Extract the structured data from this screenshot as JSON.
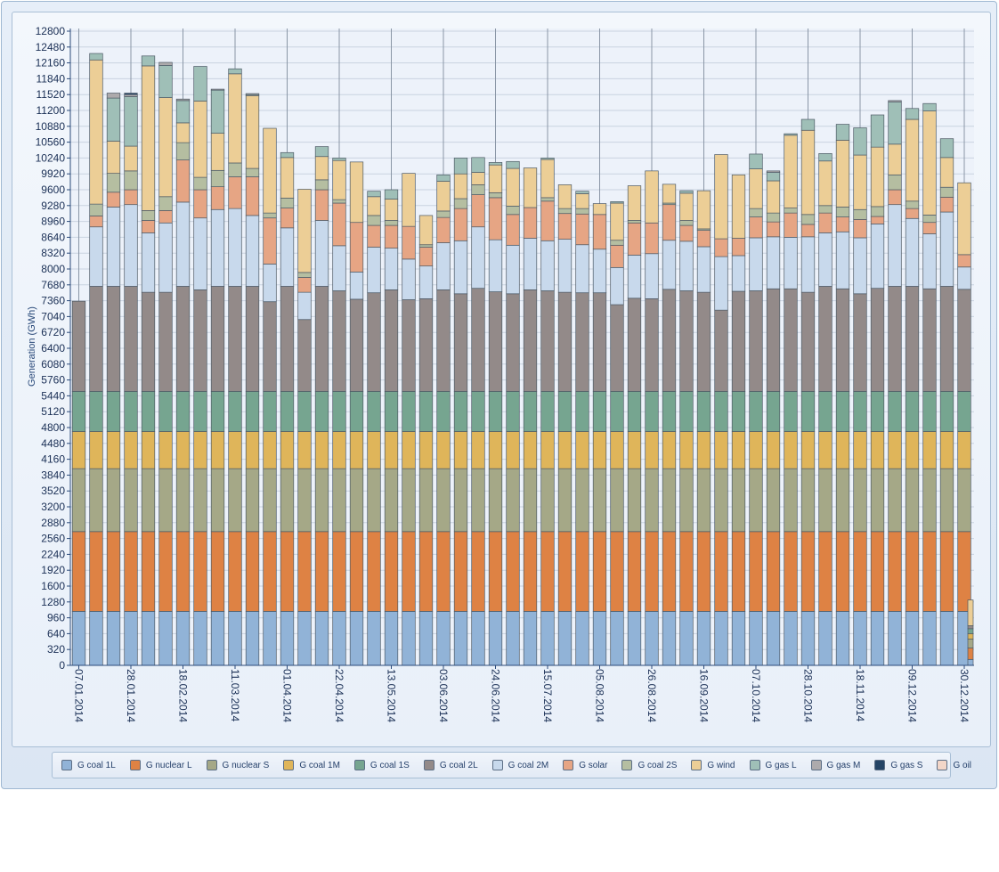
{
  "colors": {
    "coal1L": "#91b3d7",
    "nuclearL": "#de8244",
    "nuclearS": "#a5a887",
    "coal1M": "#dfb55a",
    "coal1S": "#76a590",
    "coal2L": "#938a89",
    "coal2M": "#c8d9ec",
    "solar": "#e6a584",
    "coal2S": "#b5bea1",
    "wind": "#ecce96",
    "gasL": "#9fbfb7",
    "gasM": "#adaaac",
    "gasS": "#244466",
    "oil": "#f3d6c8"
  },
  "legend": [
    {
      "label": "G coal 1L",
      "color": "#91b3d7"
    },
    {
      "label": "G nuclear L",
      "color": "#de8244"
    },
    {
      "label": "G nuclear S",
      "color": "#a5a887"
    },
    {
      "label": "G coal 1M",
      "color": "#dfb55a"
    },
    {
      "label": "G coal 1S",
      "color": "#76a590"
    },
    {
      "label": "G coal 2L",
      "color": "#938a89"
    },
    {
      "label": "G coal 2M",
      "color": "#c8d9ec"
    },
    {
      "label": "G solar",
      "color": "#e6a584"
    },
    {
      "label": "G coal 2S",
      "color": "#b5bea1"
    },
    {
      "label": "G wind",
      "color": "#ecce96"
    },
    {
      "label": "G gas L",
      "color": "#9fbfb7"
    },
    {
      "label": "G gas M",
      "color": "#adaaac"
    },
    {
      "label": "G gas S",
      "color": "#244466"
    },
    {
      "label": "G oil",
      "color": "#f3d6c8"
    }
  ],
  "chart_data": {
    "type": "bar",
    "stacked": true,
    "ylabel": "Generation (GWh)",
    "xlabel": "",
    "ylim": [
      0,
      12800
    ],
    "ytick_step": 320,
    "grid": true,
    "legend_position": "bottom",
    "x_tick_labels": [
      {
        "index": 0,
        "label": "07.01.2014"
      },
      {
        "index": 3,
        "label": "28.01.2014"
      },
      {
        "index": 6,
        "label": "18.02.2014"
      },
      {
        "index": 9,
        "label": "11.03.2014"
      },
      {
        "index": 12,
        "label": "01.04.2014"
      },
      {
        "index": 15,
        "label": "22.04.2014"
      },
      {
        "index": 18,
        "label": "13.05.2014"
      },
      {
        "index": 21,
        "label": "03.06.2014"
      },
      {
        "index": 24,
        "label": "24.06.2014"
      },
      {
        "index": 27,
        "label": "15.07.2014"
      },
      {
        "index": 30,
        "label": "05.08.2014"
      },
      {
        "index": 33,
        "label": "26.08.2014"
      },
      {
        "index": 36,
        "label": "16.09.2014"
      },
      {
        "index": 39,
        "label": "07.10.2014"
      },
      {
        "index": 42,
        "label": "28.10.2014"
      },
      {
        "index": 45,
        "label": "18.11.2014"
      },
      {
        "index": 48,
        "label": "09.12.2014"
      },
      {
        "index": 51,
        "label": "30.12.2014"
      }
    ],
    "series_order": [
      "G coal 1L",
      "G nuclear L",
      "G nuclear S",
      "G coal 1M",
      "G coal 1S",
      "G coal 2L",
      "G coal 2M",
      "G solar",
      "G coal 2S",
      "G wind",
      "G gas L",
      "G gas M",
      "G gas S"
    ],
    "stack_values": [
      [
        1090,
        1610,
        1270,
        750,
        810,
        1820,
        0,
        0,
        0,
        0,
        0,
        0,
        0
      ],
      [
        1090,
        1610,
        1270,
        750,
        810,
        2120,
        1200,
        220,
        240,
        2910,
        130,
        0,
        0
      ],
      [
        1090,
        1610,
        1270,
        750,
        810,
        2120,
        1600,
        300,
        380,
        650,
        870,
        100,
        0
      ],
      [
        1090,
        1610,
        1270,
        750,
        810,
        2120,
        1650,
        300,
        380,
        500,
        1000,
        40,
        30
      ],
      [
        1090,
        1610,
        1270,
        750,
        810,
        2000,
        1200,
        250,
        200,
        2920,
        200,
        0,
        0
      ],
      [
        1090,
        1610,
        1270,
        750,
        810,
        2000,
        1400,
        250,
        280,
        2000,
        650,
        60,
        0
      ],
      [
        1090,
        1610,
        1270,
        750,
        810,
        2120,
        1700,
        850,
        350,
        400,
        450,
        30,
        0
      ],
      [
        1090,
        1610,
        1270,
        750,
        810,
        2050,
        1450,
        570,
        250,
        1540,
        700,
        0,
        0
      ],
      [
        1090,
        1610,
        1270,
        750,
        810,
        2120,
        1550,
        460,
        330,
        750,
        870,
        20,
        0
      ],
      [
        1090,
        1610,
        1270,
        750,
        810,
        2120,
        1570,
        640,
        280,
        1800,
        100,
        0,
        0
      ],
      [
        1090,
        1610,
        1270,
        750,
        810,
        2120,
        1430,
        780,
        170,
        1470,
        20,
        20,
        0
      ],
      [
        1090,
        1610,
        1270,
        750,
        810,
        1810,
        760,
        930,
        100,
        1710,
        0,
        0,
        0
      ],
      [
        1090,
        1610,
        1270,
        750,
        810,
        2120,
        1180,
        400,
        200,
        820,
        100,
        0,
        0
      ],
      [
        1090,
        1610,
        1270,
        750,
        810,
        1450,
        550,
        300,
        100,
        1680,
        0,
        0,
        0
      ],
      [
        1090,
        1610,
        1270,
        750,
        810,
        2120,
        1330,
        620,
        200,
        470,
        200,
        0,
        0
      ],
      [
        1090,
        1610,
        1270,
        750,
        810,
        2030,
        910,
        860,
        70,
        790,
        50,
        0,
        0
      ],
      [
        1090,
        1610,
        1270,
        750,
        810,
        1860,
        550,
        1000,
        0,
        1220,
        0,
        0,
        0
      ],
      [
        1090,
        1610,
        1270,
        750,
        810,
        1990,
        920,
        440,
        200,
        380,
        110,
        0,
        0
      ],
      [
        1090,
        1610,
        1270,
        750,
        810,
        2050,
        840,
        460,
        100,
        430,
        190,
        0,
        0
      ],
      [
        1090,
        1610,
        1270,
        750,
        810,
        1850,
        820,
        660,
        0,
        1070,
        0,
        0,
        0
      ],
      [
        1090,
        1610,
        1270,
        750,
        810,
        1870,
        660,
        380,
        50,
        590,
        0,
        0,
        0
      ],
      [
        1090,
        1610,
        1270,
        750,
        810,
        2050,
        950,
        510,
        130,
        600,
        130,
        0,
        0
      ],
      [
        1090,
        1610,
        1270,
        750,
        810,
        1970,
        1070,
        650,
        200,
        500,
        320,
        0,
        0
      ],
      [
        1090,
        1610,
        1270,
        750,
        810,
        2080,
        1240,
        650,
        200,
        250,
        300,
        0,
        0
      ],
      [
        1090,
        1610,
        1270,
        750,
        810,
        2010,
        1050,
        850,
        100,
        560,
        50,
        0,
        0
      ],
      [
        1090,
        1610,
        1270,
        750,
        810,
        1970,
        980,
        620,
        170,
        760,
        140,
        0,
        0
      ],
      [
        1090,
        1610,
        1270,
        750,
        810,
        2050,
        1040,
        620,
        0,
        800,
        0,
        0,
        0
      ],
      [
        1090,
        1610,
        1270,
        750,
        810,
        2030,
        1010,
        800,
        70,
        770,
        30,
        0,
        0
      ],
      [
        1090,
        1610,
        1270,
        750,
        810,
        2000,
        1070,
        520,
        100,
        480,
        0,
        0,
        0
      ],
      [
        1090,
        1610,
        1270,
        750,
        810,
        1990,
        970,
        620,
        110,
        300,
        50,
        0,
        0
      ],
      [
        1090,
        1610,
        1270,
        750,
        810,
        1990,
        880,
        700,
        0,
        220,
        0,
        0,
        0
      ],
      [
        1090,
        1610,
        1270,
        750,
        810,
        1750,
        750,
        450,
        100,
        750,
        30,
        0,
        0
      ],
      [
        1090,
        1610,
        1270,
        750,
        810,
        1880,
        870,
        650,
        50,
        700,
        0,
        0,
        0
      ],
      [
        1090,
        1610,
        1270,
        750,
        810,
        1870,
        910,
        620,
        0,
        1050,
        0,
        0,
        0
      ],
      [
        1090,
        1610,
        1270,
        750,
        810,
        2060,
        990,
        720,
        30,
        380,
        0,
        0,
        0
      ],
      [
        1090,
        1610,
        1270,
        750,
        810,
        2030,
        1000,
        320,
        100,
        550,
        50,
        0,
        0
      ],
      [
        1090,
        1610,
        1270,
        750,
        810,
        2000,
        920,
        330,
        30,
        770,
        0,
        0,
        0
      ],
      [
        1090,
        1610,
        1270,
        750,
        810,
        1640,
        1080,
        360,
        0,
        1700,
        0,
        0,
        0
      ],
      [
        1090,
        1610,
        1270,
        750,
        810,
        2020,
        720,
        350,
        0,
        1280,
        0,
        0,
        0
      ],
      [
        1090,
        1610,
        1270,
        750,
        810,
        2030,
        1070,
        420,
        170,
        800,
        300,
        0,
        0
      ],
      [
        1090,
        1610,
        1270,
        750,
        810,
        2070,
        1050,
        300,
        180,
        650,
        170,
        30,
        0
      ],
      [
        1090,
        1610,
        1270,
        750,
        810,
        2070,
        1040,
        490,
        100,
        1470,
        30,
        0,
        0
      ],
      [
        1090,
        1610,
        1270,
        750,
        810,
        2000,
        1120,
        250,
        200,
        1700,
        220,
        0,
        0
      ],
      [
        1090,
        1610,
        1270,
        750,
        810,
        2120,
        1080,
        400,
        150,
        900,
        150,
        0,
        0
      ],
      [
        1090,
        1610,
        1270,
        750,
        810,
        2070,
        1150,
        300,
        200,
        1350,
        320,
        0,
        0
      ],
      [
        1090,
        1610,
        1270,
        750,
        810,
        1970,
        1130,
        370,
        200,
        1100,
        550,
        0,
        0
      ],
      [
        1090,
        1610,
        1270,
        750,
        810,
        2080,
        1300,
        150,
        200,
        1200,
        650,
        0,
        0
      ],
      [
        1090,
        1610,
        1270,
        750,
        810,
        2120,
        1650,
        300,
        300,
        620,
        850,
        30,
        0
      ],
      [
        1090,
        1610,
        1270,
        750,
        810,
        2120,
        1370,
        200,
        150,
        1650,
        220,
        0,
        0
      ],
      [
        1090,
        1610,
        1270,
        750,
        810,
        2070,
        1110,
        230,
        150,
        2100,
        150,
        0,
        0
      ],
      [
        1090,
        1610,
        1270,
        750,
        810,
        2120,
        1500,
        300,
        200,
        600,
        380,
        0,
        0
      ],
      [
        1090,
        1610,
        1270,
        750,
        810,
        2060,
        450,
        250,
        0,
        1450,
        0,
        0,
        0
      ],
      [
        120,
        230,
        180,
        110,
        100,
        60,
        0,
        0,
        0,
        520,
        0,
        0,
        0
      ]
    ]
  }
}
